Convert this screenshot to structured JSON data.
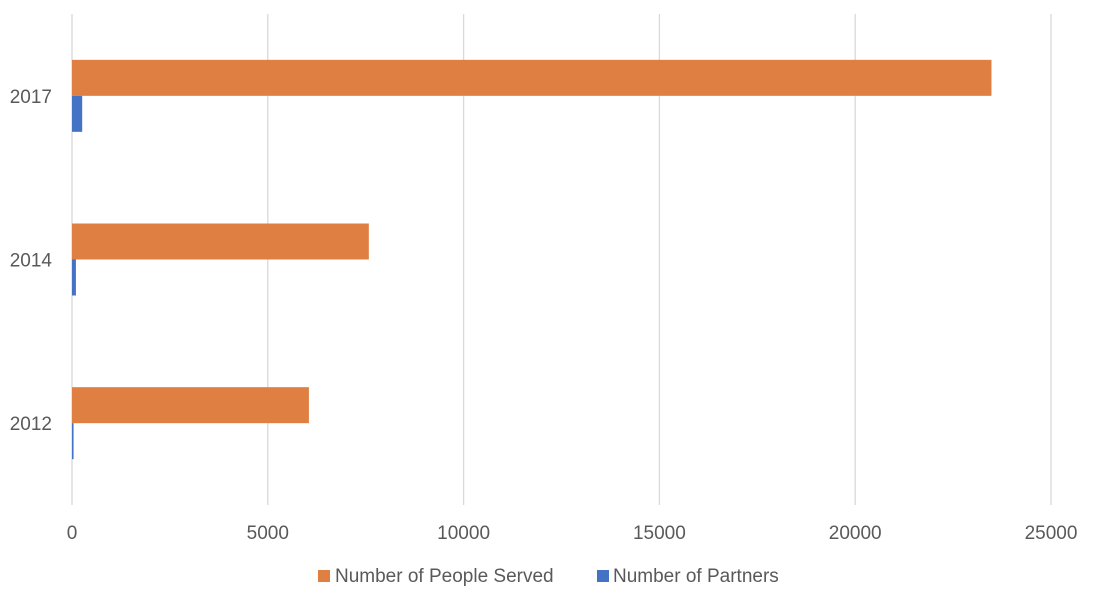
{
  "chart_data": {
    "type": "bar",
    "orientation": "horizontal",
    "categories": [
      "2012",
      "2014",
      "2017"
    ],
    "series": [
      {
        "name": "Number of People Served",
        "color": "#E07F42",
        "values": [
          6050,
          7580,
          23480
        ]
      },
      {
        "name": "Number of Partners",
        "color": "#4472C4",
        "values": [
          40,
          100,
          260
        ]
      }
    ],
    "xlim": [
      0,
      25000
    ],
    "xticks": [
      "0",
      "5000",
      "10000",
      "15000",
      "20000",
      "25000"
    ],
    "grid": "vertical",
    "legend": "bottom",
    "title": "",
    "xlabel": "",
    "ylabel": ""
  }
}
